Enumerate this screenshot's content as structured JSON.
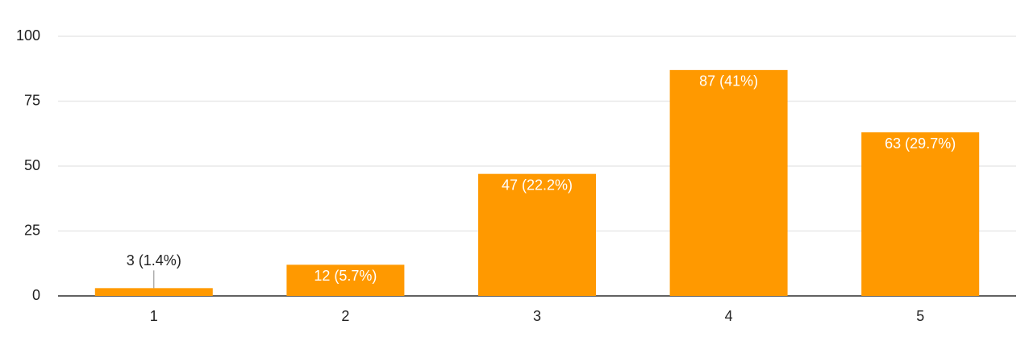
{
  "chart_data": {
    "type": "bar",
    "categories": [
      "1",
      "2",
      "3",
      "4",
      "5"
    ],
    "values": [
      3,
      12,
      47,
      87,
      63
    ],
    "value_labels": [
      "3 (1.4%)",
      "12 (5.7%)",
      "47 (22.2%)",
      "87 (41%)",
      "63 (29.7%)"
    ],
    "color": "#ff9900",
    "ylim": [
      0,
      100
    ],
    "yticks": [
      0,
      25,
      50,
      75,
      100
    ],
    "grid": true
  }
}
